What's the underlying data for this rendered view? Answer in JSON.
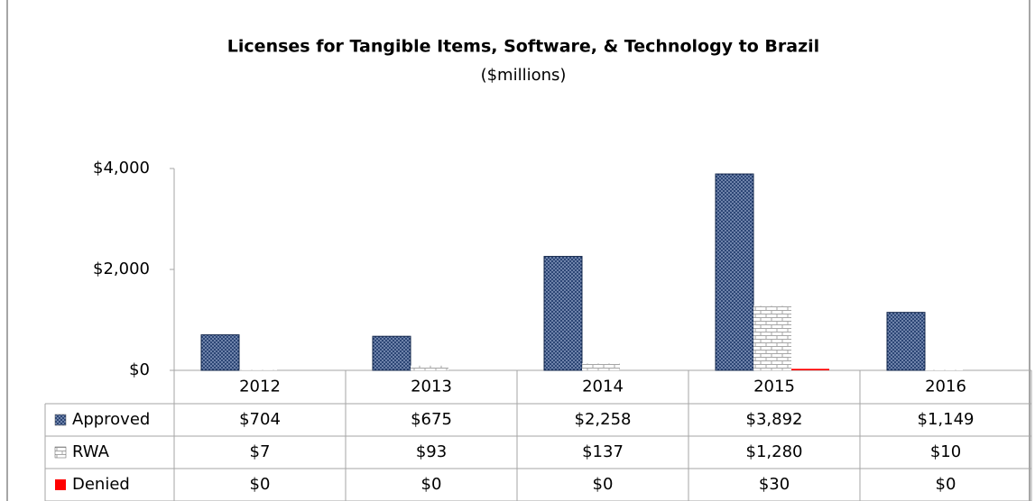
{
  "chart_data": {
    "type": "bar",
    "title": "Licenses for Tangible Items, Software, & Technology to Brazil",
    "subtitle": "($millions)",
    "categories": [
      "2012",
      "2013",
      "2014",
      "2015",
      "2016"
    ],
    "series": [
      {
        "name": "Approved",
        "color": "#1f3a6b",
        "pattern": "crosshatch",
        "values": [
          704,
          675,
          2258,
          3892,
          1149
        ],
        "value_labels": [
          "$704",
          "$675",
          "$2,258",
          "$3,892",
          "$1,149"
        ]
      },
      {
        "name": "RWA",
        "color": "#a6a6a6",
        "pattern": "brick",
        "values": [
          7,
          93,
          137,
          1280,
          10
        ],
        "value_labels": [
          "$7",
          "$93",
          "$137",
          "$1,280",
          "$10"
        ]
      },
      {
        "name": "Denied",
        "color": "#ff0000",
        "pattern": "solid",
        "values": [
          0,
          0,
          0,
          30,
          0
        ],
        "value_labels": [
          "$0",
          "$0",
          "$0",
          "$30",
          "$0"
        ]
      }
    ],
    "ylim": [
      0,
      4000
    ],
    "yticks": [
      {
        "value": 0,
        "label": "$0"
      },
      {
        "value": 2000,
        "label": "$2,000"
      },
      {
        "value": 4000,
        "label": "$4,000"
      }
    ],
    "grid": false
  }
}
